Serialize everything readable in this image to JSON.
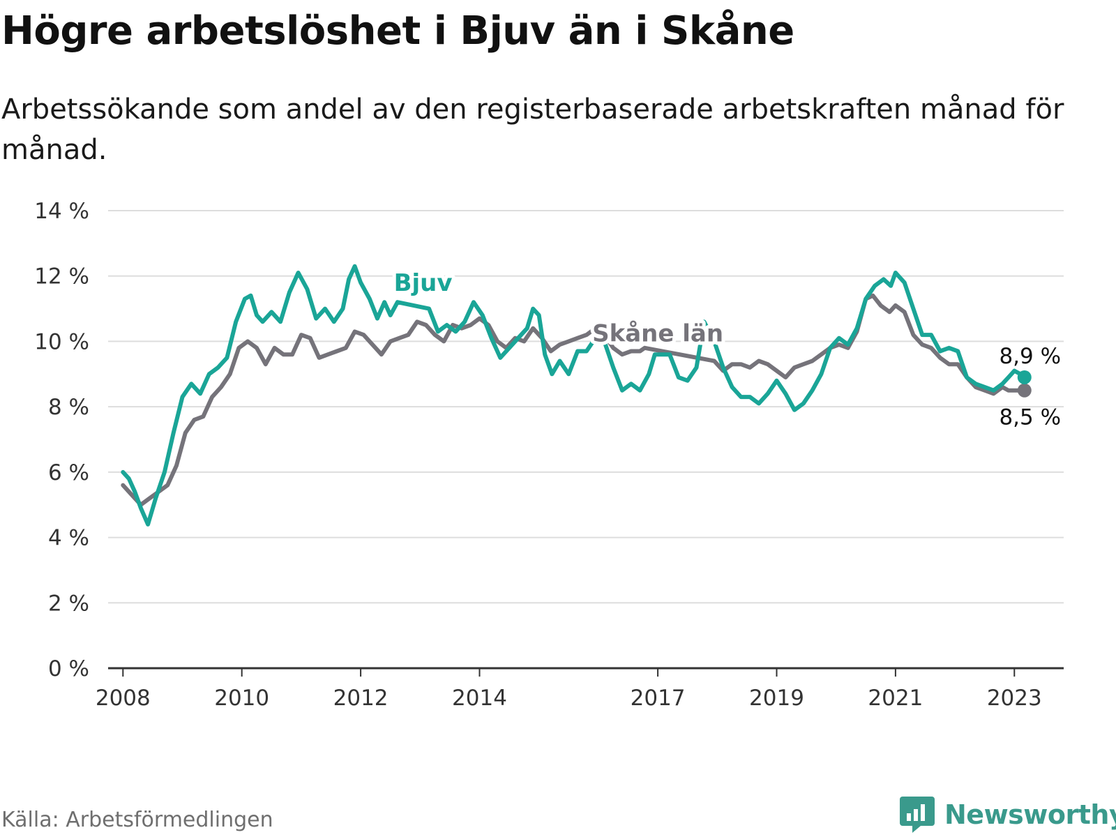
{
  "title": "Högre arbetslöshet i Bjuv än i Skåne",
  "subtitle": "Arbetssökande som andel av den registerbaserade arbetskraften månad för månad.",
  "source": "Källa: Arbetsförmedlingen",
  "brand": {
    "name": "Newsworthy",
    "icon": "bar-chart-speech-bubble-icon"
  },
  "colors": {
    "bjuv": "#1aa597",
    "skane": "#75737a",
    "grid": "#dddddd",
    "axis": "#333333",
    "brand": "#3a9a8c"
  },
  "chart_data": {
    "type": "line",
    "y_unit": "%",
    "ylim": [
      0,
      14
    ],
    "y_ticks": [
      {
        "value": 0,
        "label": "0 %"
      },
      {
        "value": 2,
        "label": "2 %"
      },
      {
        "value": 4,
        "label": "4 %"
      },
      {
        "value": 6,
        "label": "6 %"
      },
      {
        "value": 8,
        "label": "8 %"
      },
      {
        "value": 10,
        "label": "10 %"
      },
      {
        "value": 12,
        "label": "12 %"
      },
      {
        "value": 14,
        "label": "14 %"
      }
    ],
    "x_range": [
      2007.75,
      2023.83
    ],
    "x_ticks": [
      {
        "value": 2008,
        "label": "2008"
      },
      {
        "value": 2010,
        "label": "2010"
      },
      {
        "value": 2012,
        "label": "2012"
      },
      {
        "value": 2014,
        "label": "2014"
      },
      {
        "value": 2017,
        "label": "2017"
      },
      {
        "value": 2019,
        "label": "2019"
      },
      {
        "value": 2021,
        "label": "2021"
      },
      {
        "value": 2023,
        "label": "2023"
      }
    ],
    "series": [
      {
        "name": "Bjuv",
        "color": "#1aa597",
        "end_label": "8,9 %",
        "end_value": 8.9,
        "points": [
          [
            2008.0,
            6.0
          ],
          [
            2008.1,
            5.8
          ],
          [
            2008.2,
            5.4
          ],
          [
            2008.3,
            4.9
          ],
          [
            2008.42,
            4.4
          ],
          [
            2008.55,
            5.2
          ],
          [
            2008.7,
            6.0
          ],
          [
            2008.85,
            7.2
          ],
          [
            2009.0,
            8.3
          ],
          [
            2009.15,
            8.7
          ],
          [
            2009.3,
            8.4
          ],
          [
            2009.45,
            9.0
          ],
          [
            2009.6,
            9.2
          ],
          [
            2009.75,
            9.5
          ],
          [
            2009.9,
            10.6
          ],
          [
            2010.05,
            11.3
          ],
          [
            2010.15,
            11.4
          ],
          [
            2010.25,
            10.8
          ],
          [
            2010.35,
            10.6
          ],
          [
            2010.5,
            10.9
          ],
          [
            2010.65,
            10.6
          ],
          [
            2010.8,
            11.5
          ],
          [
            2010.95,
            12.1
          ],
          [
            2011.1,
            11.6
          ],
          [
            2011.25,
            10.7
          ],
          [
            2011.4,
            11.0
          ],
          [
            2011.55,
            10.6
          ],
          [
            2011.7,
            11.0
          ],
          [
            2011.8,
            11.9
          ],
          [
            2011.9,
            12.3
          ],
          [
            2012.0,
            11.8
          ],
          [
            2012.15,
            11.3
          ],
          [
            2012.28,
            10.7
          ],
          [
            2012.4,
            11.2
          ],
          [
            2012.5,
            10.8
          ],
          [
            2012.62,
            11.2
          ],
          [
            2013.15,
            11.0
          ],
          [
            2013.3,
            10.3
          ],
          [
            2013.45,
            10.5
          ],
          [
            2013.6,
            10.3
          ],
          [
            2013.75,
            10.6
          ],
          [
            2013.9,
            11.2
          ],
          [
            2014.05,
            10.8
          ],
          [
            2014.2,
            10.1
          ],
          [
            2014.35,
            9.5
          ],
          [
            2014.5,
            9.8
          ],
          [
            2014.65,
            10.1
          ],
          [
            2014.8,
            10.4
          ],
          [
            2014.9,
            11.0
          ],
          [
            2015.0,
            10.8
          ],
          [
            2015.1,
            9.6
          ],
          [
            2015.22,
            9.0
          ],
          [
            2015.35,
            9.4
          ],
          [
            2015.5,
            9.0
          ],
          [
            2015.65,
            9.7
          ],
          [
            2015.8,
            9.7
          ],
          [
            2015.95,
            10.1
          ],
          [
            2016.1,
            10.0
          ],
          [
            2016.25,
            9.2
          ],
          [
            2016.4,
            8.5
          ],
          [
            2016.55,
            8.7
          ],
          [
            2016.7,
            8.5
          ],
          [
            2016.85,
            9.0
          ],
          [
            2016.95,
            9.6
          ],
          [
            2017.2,
            9.6
          ],
          [
            2017.35,
            8.9
          ],
          [
            2017.5,
            8.8
          ],
          [
            2017.65,
            9.2
          ],
          [
            2017.78,
            10.6
          ],
          [
            2017.95,
            10.0
          ],
          [
            2018.1,
            9.2
          ],
          [
            2018.25,
            8.6
          ],
          [
            2018.4,
            8.3
          ],
          [
            2018.55,
            8.3
          ],
          [
            2018.7,
            8.1
          ],
          [
            2018.85,
            8.4
          ],
          [
            2019.0,
            8.8
          ],
          [
            2019.15,
            8.4
          ],
          [
            2019.3,
            7.9
          ],
          [
            2019.45,
            8.1
          ],
          [
            2019.6,
            8.5
          ],
          [
            2019.75,
            9.0
          ],
          [
            2019.9,
            9.8
          ],
          [
            2020.05,
            10.1
          ],
          [
            2020.2,
            9.9
          ],
          [
            2020.35,
            10.4
          ],
          [
            2020.5,
            11.3
          ],
          [
            2020.65,
            11.7
          ],
          [
            2020.8,
            11.9
          ],
          [
            2020.92,
            11.7
          ],
          [
            2021.0,
            12.1
          ],
          [
            2021.15,
            11.8
          ],
          [
            2021.3,
            11.0
          ],
          [
            2021.45,
            10.2
          ],
          [
            2021.6,
            10.2
          ],
          [
            2021.75,
            9.7
          ],
          [
            2021.9,
            9.8
          ],
          [
            2022.05,
            9.7
          ],
          [
            2022.2,
            8.9
          ],
          [
            2022.35,
            8.7
          ],
          [
            2022.5,
            8.6
          ],
          [
            2022.65,
            8.5
          ],
          [
            2022.8,
            8.7
          ],
          [
            2022.9,
            8.9
          ],
          [
            2023.0,
            9.1
          ],
          [
            2023.1,
            9.0
          ],
          [
            2023.17,
            8.9
          ]
        ]
      },
      {
        "name": "Skåne län",
        "color": "#75737a",
        "end_label": "8,5 %",
        "end_value": 8.5,
        "points": [
          [
            2008.0,
            5.6
          ],
          [
            2008.15,
            5.3
          ],
          [
            2008.3,
            5.0
          ],
          [
            2008.45,
            5.2
          ],
          [
            2008.6,
            5.4
          ],
          [
            2008.75,
            5.6
          ],
          [
            2008.9,
            6.2
          ],
          [
            2009.05,
            7.2
          ],
          [
            2009.2,
            7.6
          ],
          [
            2009.35,
            7.7
          ],
          [
            2009.5,
            8.3
          ],
          [
            2009.65,
            8.6
          ],
          [
            2009.8,
            9.0
          ],
          [
            2009.95,
            9.8
          ],
          [
            2010.1,
            10.0
          ],
          [
            2010.25,
            9.8
          ],
          [
            2010.4,
            9.3
          ],
          [
            2010.55,
            9.8
          ],
          [
            2010.7,
            9.6
          ],
          [
            2010.85,
            9.6
          ],
          [
            2011.0,
            10.2
          ],
          [
            2011.15,
            10.1
          ],
          [
            2011.3,
            9.5
          ],
          [
            2011.45,
            9.6
          ],
          [
            2011.6,
            9.7
          ],
          [
            2011.75,
            9.8
          ],
          [
            2011.9,
            10.3
          ],
          [
            2012.05,
            10.2
          ],
          [
            2012.2,
            9.9
          ],
          [
            2012.35,
            9.6
          ],
          [
            2012.5,
            10.0
          ],
          [
            2012.65,
            10.1
          ],
          [
            2012.8,
            10.2
          ],
          [
            2012.95,
            10.6
          ],
          [
            2013.1,
            10.5
          ],
          [
            2013.25,
            10.2
          ],
          [
            2013.4,
            10.0
          ],
          [
            2013.55,
            10.5
          ],
          [
            2013.7,
            10.4
          ],
          [
            2013.85,
            10.5
          ],
          [
            2014.0,
            10.7
          ],
          [
            2014.15,
            10.5
          ],
          [
            2014.3,
            10.0
          ],
          [
            2014.45,
            9.8
          ],
          [
            2014.6,
            10.1
          ],
          [
            2014.75,
            10.0
          ],
          [
            2014.9,
            10.4
          ],
          [
            2015.05,
            10.1
          ],
          [
            2015.2,
            9.7
          ],
          [
            2015.35,
            9.9
          ],
          [
            2015.5,
            10.0
          ],
          [
            2015.65,
            10.1
          ],
          [
            2015.8,
            10.2
          ],
          [
            2015.95,
            10.4
          ],
          [
            2016.1,
            10.2
          ],
          [
            2016.25,
            9.8
          ],
          [
            2016.4,
            9.6
          ],
          [
            2016.55,
            9.7
          ],
          [
            2016.7,
            9.7
          ],
          [
            2016.78,
            9.8
          ],
          [
            2017.95,
            9.4
          ],
          [
            2018.1,
            9.1
          ],
          [
            2018.25,
            9.3
          ],
          [
            2018.4,
            9.3
          ],
          [
            2018.55,
            9.2
          ],
          [
            2018.7,
            9.4
          ],
          [
            2018.85,
            9.3
          ],
          [
            2019.0,
            9.1
          ],
          [
            2019.15,
            8.9
          ],
          [
            2019.3,
            9.2
          ],
          [
            2019.45,
            9.3
          ],
          [
            2019.6,
            9.4
          ],
          [
            2019.75,
            9.6
          ],
          [
            2019.9,
            9.8
          ],
          [
            2020.05,
            9.9
          ],
          [
            2020.2,
            9.8
          ],
          [
            2020.35,
            10.3
          ],
          [
            2020.5,
            11.3
          ],
          [
            2020.62,
            11.4
          ],
          [
            2020.75,
            11.1
          ],
          [
            2020.9,
            10.9
          ],
          [
            2021.0,
            11.1
          ],
          [
            2021.15,
            10.9
          ],
          [
            2021.3,
            10.2
          ],
          [
            2021.45,
            9.9
          ],
          [
            2021.6,
            9.8
          ],
          [
            2021.75,
            9.5
          ],
          [
            2021.9,
            9.3
          ],
          [
            2022.05,
            9.3
          ],
          [
            2022.2,
            8.9
          ],
          [
            2022.35,
            8.6
          ],
          [
            2022.5,
            8.5
          ],
          [
            2022.65,
            8.4
          ],
          [
            2022.8,
            8.6
          ],
          [
            2022.9,
            8.5
          ],
          [
            2023.0,
            8.5
          ],
          [
            2023.1,
            8.5
          ],
          [
            2023.17,
            8.5
          ]
        ]
      }
    ],
    "annotations": [
      {
        "text": "Bjuv",
        "series": "Bjuv",
        "x": 2013.05,
        "y": 11.55
      },
      {
        "text": "Skåne län",
        "series": "Skåne län",
        "x": 2017.0,
        "y": 10.0
      }
    ]
  }
}
